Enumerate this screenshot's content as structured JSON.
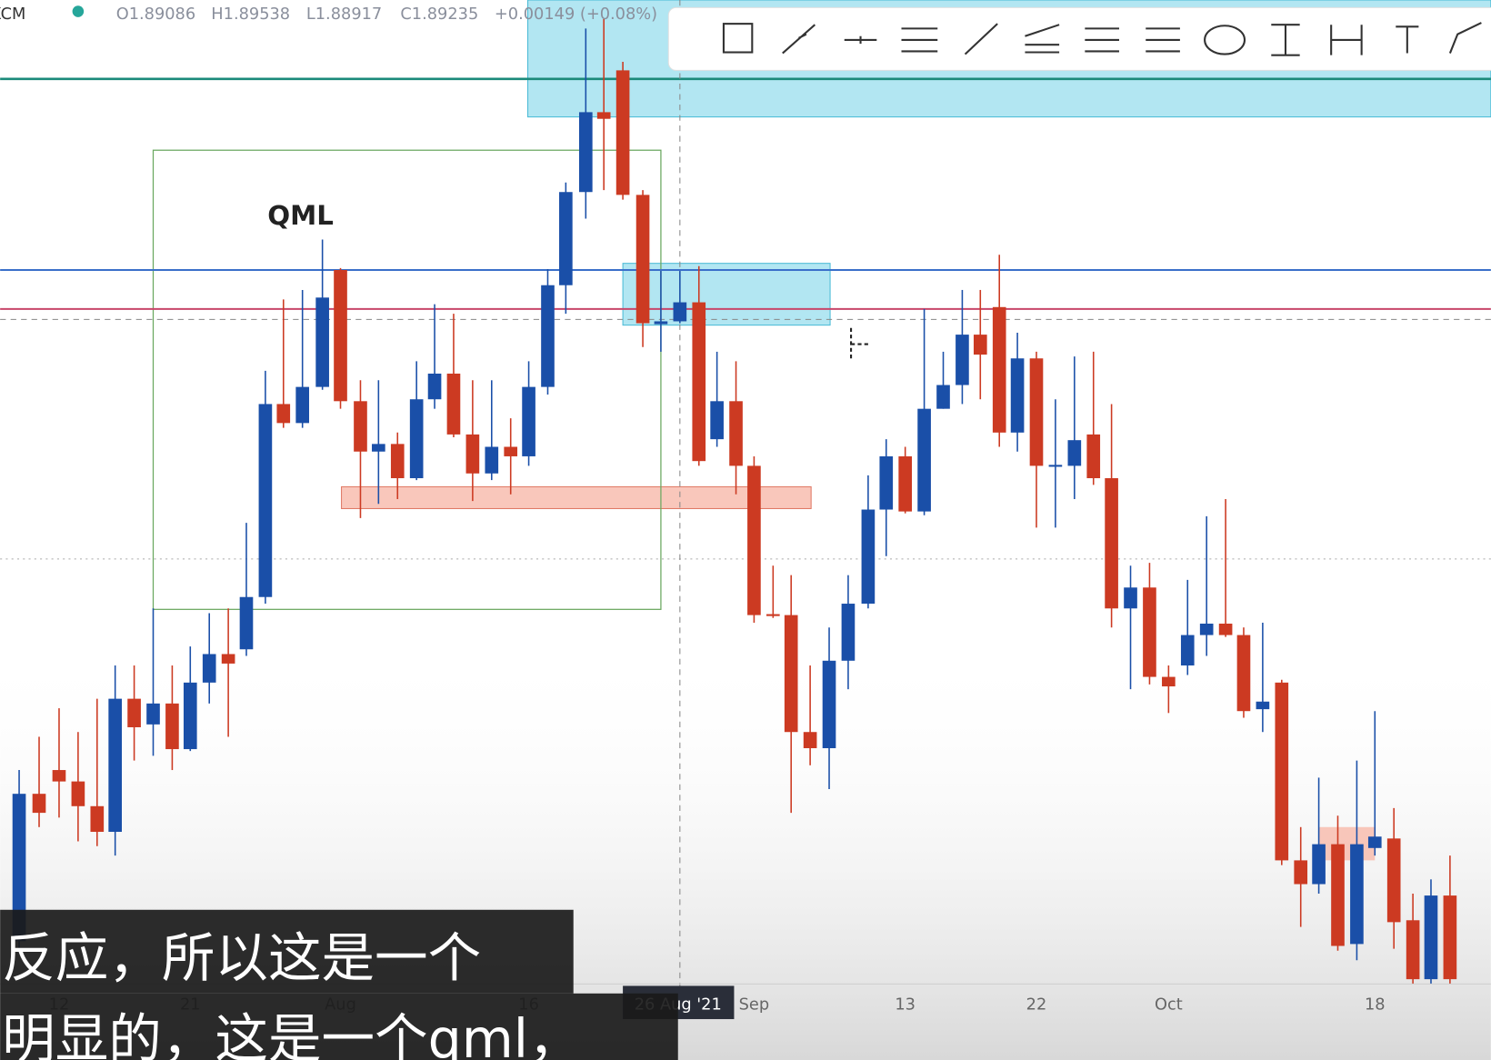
{
  "header": {
    "symbol": "XCM",
    "open": "O1.89086",
    "high": "H1.89538",
    "low": "L1.88917",
    "close": "C1.89235",
    "change": "+0.00149 (+0.08%)"
  },
  "annotation": "QML",
  "x_axis": {
    "labels": [
      "12",
      "21",
      "Aug",
      "16",
      "Sep",
      "13",
      "22",
      "Oct",
      "18"
    ],
    "crosshair_label": "26 Aug '21"
  },
  "subtitles": [
    "反应，所以这是一个",
    "明显的，这是一个qml，"
  ]
}
